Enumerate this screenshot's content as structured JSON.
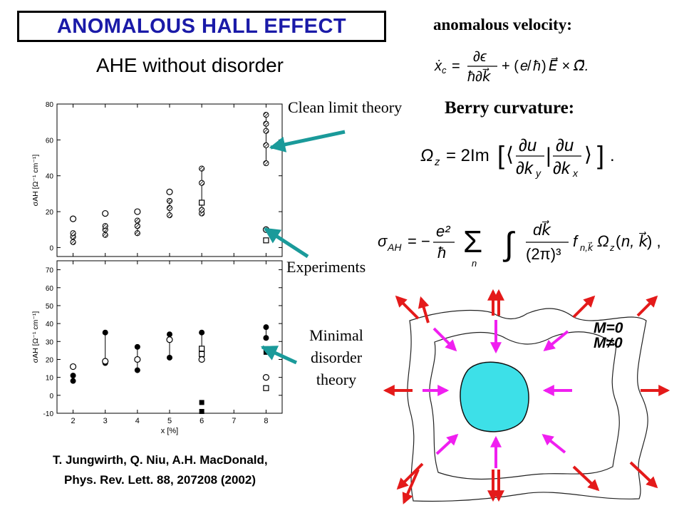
{
  "title": "ANOMALOUS HALL EFFECT",
  "subtitle": "AHE without disorder",
  "anomalous_velocity_label": "anomalous velocity:",
  "berry_curvature_label": "Berry curvature:",
  "annotations": {
    "clean": "Clean limit theory",
    "experiments": "Experiments",
    "minimal_lines": [
      "Minimal",
      "disorder",
      "theory"
    ]
  },
  "citation": {
    "line1": "T. Jungwirth, Q. Niu,  A.H. MacDonald,",
    "line2": "Phys. Rev. Lett. 88, 207208 (2002)"
  },
  "diagram": {
    "label_m0": "M=0",
    "label_mne0": "M≠0",
    "colors": {
      "fermi": "#3de0e8",
      "outer_arrow": "#e41a1a",
      "inner_arrow": "#f01ff0"
    }
  },
  "chart_data": [
    {
      "type": "scatter",
      "ylabel": "σAH [Ω⁻¹ cm⁻¹]",
      "ylim": [
        -5,
        80
      ],
      "yticks": [
        "0",
        "20",
        "40",
        "60",
        "80"
      ],
      "x_ticks": [
        2,
        3,
        4,
        5,
        6,
        7,
        8
      ],
      "grid": false,
      "series": [
        {
          "marker": "hatched-circle",
          "x": [
            2,
            2,
            2,
            3,
            3,
            3,
            4,
            4,
            4,
            5,
            5,
            5,
            6,
            6,
            6,
            6,
            8,
            8,
            8,
            8,
            8
          ],
          "y": [
            3,
            6,
            8,
            7,
            10,
            12,
            8,
            12,
            15,
            18,
            22,
            26,
            19,
            21,
            36,
            44,
            47,
            57,
            65,
            69,
            74
          ]
        },
        {
          "marker": "open-circle",
          "x": [
            2,
            3,
            4,
            5,
            8
          ],
          "y": [
            16,
            19,
            20,
            31,
            10
          ]
        },
        {
          "marker": "open-square",
          "x": [
            6,
            8
          ],
          "y": [
            25,
            4
          ]
        }
      ]
    },
    {
      "type": "scatter",
      "xlabel": "x [%]",
      "ylabel": "σAH [Ω⁻¹ cm⁻¹]",
      "ylim": [
        -10,
        75
      ],
      "yticks": [
        "-10",
        "0",
        "10",
        "20",
        "30",
        "40",
        "50",
        "60",
        "70"
      ],
      "xticks": [
        "2",
        "3",
        "4",
        "5",
        "6",
        "7",
        "8"
      ],
      "grid": false,
      "series": [
        {
          "marker": "filled-circle",
          "x": [
            2,
            2,
            3,
            3,
            4,
            4,
            5,
            5,
            6,
            6,
            8,
            8
          ],
          "y": [
            11,
            8,
            35,
            18,
            27,
            14,
            34,
            21,
            35,
            24,
            38,
            32
          ]
        },
        {
          "marker": "open-circle",
          "x": [
            2,
            3,
            4,
            5,
            6,
            8
          ],
          "y": [
            16,
            19,
            20,
            31,
            20,
            10
          ]
        },
        {
          "marker": "open-square",
          "x": [
            6,
            6,
            8
          ],
          "y": [
            26,
            23,
            4
          ]
        },
        {
          "marker": "filled-square",
          "x": [
            6,
            6,
            8,
            8
          ],
          "y": [
            -4,
            -9,
            26,
            24
          ]
        }
      ]
    }
  ]
}
